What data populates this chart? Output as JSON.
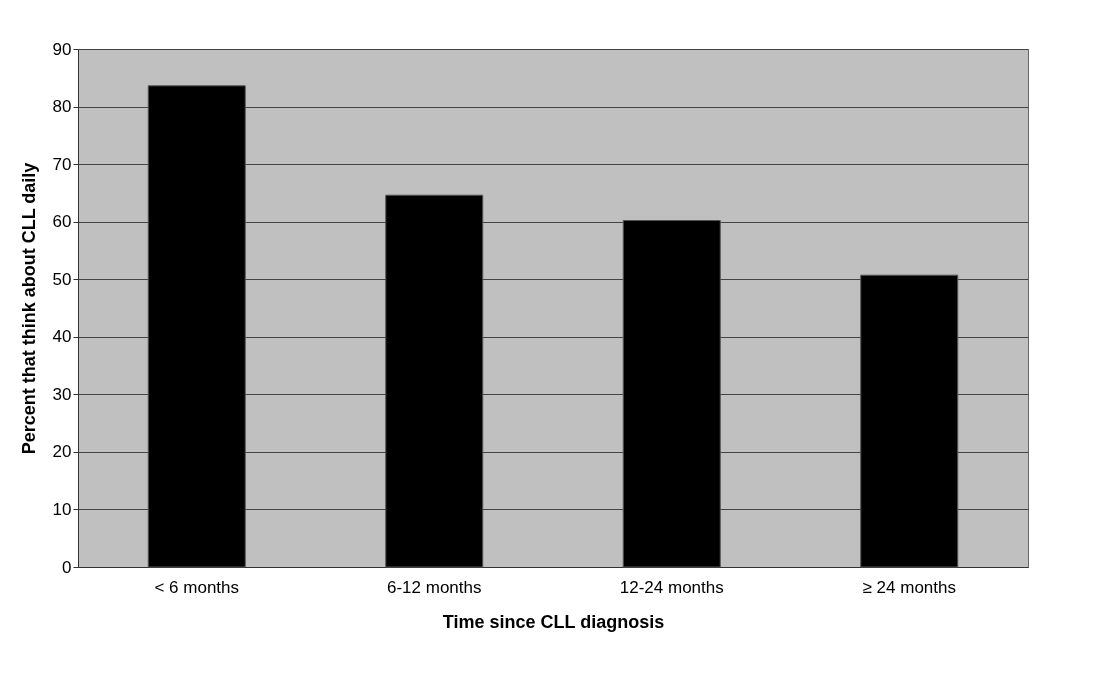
{
  "chart_data": {
    "type": "bar",
    "xlabel": "Time since CLL diagnosis",
    "ylabel": "Percent that think about CLL daily",
    "categories": [
      "< 6 months",
      "6-12 months",
      "12-24 months",
      "≥ 24 months"
    ],
    "values": [
      83.6,
      64.6,
      60.2,
      50.7
    ],
    "color": "#000000",
    "ylim": [
      0,
      90
    ],
    "yticks": [
      0,
      10,
      20,
      30,
      40,
      50,
      60,
      70,
      80,
      90
    ],
    "grid": "y"
  }
}
